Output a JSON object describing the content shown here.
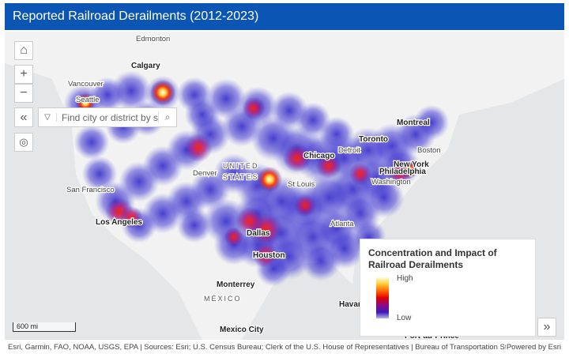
{
  "header": {
    "title": "Reported Railroad Derailments (2012-2023)"
  },
  "map": {
    "cities": [
      "Edmonton",
      "Calgary",
      "Vancouver",
      "Seattle",
      "San Francisco",
      "Los Angeles",
      "Denver",
      "UNITED",
      "STATES",
      "Chicago",
      "Detroit",
      "Toronto",
      "Montreal",
      "Boston",
      "New York",
      "Philadelphia",
      "Washington",
      "St Louis",
      "Atlanta",
      "Dallas",
      "Houston",
      "Monterrey",
      "MÉXICO",
      "Mexico City",
      "Havana",
      "Port-au-Prince"
    ],
    "search_placeholder": "Find city or district by state",
    "scale": "600 mi"
  },
  "legend": {
    "title": "Concentration and Impact of Railroad Derailments",
    "high": "High",
    "low": "Low"
  },
  "footer": {
    "attribution": "Esri, Garmin, FAO, NOAA, USGS, EPA | Sources: Esri; U.S. Census Bureau; Clerk of the U.S. House of Representatives | Bureau of Transportation Statistics ...",
    "powered": "Powered by Esri"
  }
}
